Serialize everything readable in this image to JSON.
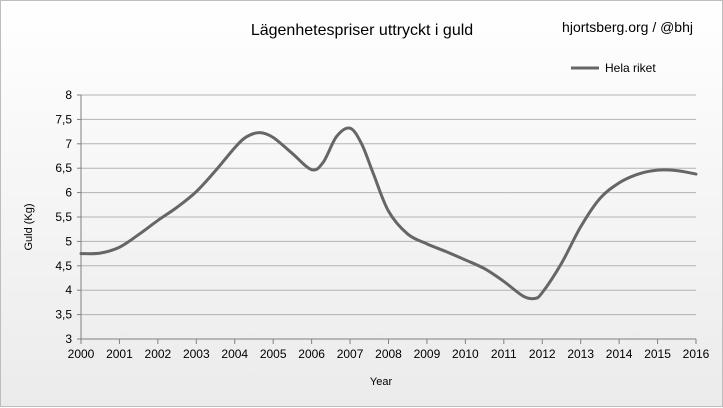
{
  "chart_data": {
    "type": "line",
    "title": "Lägenhetespriser uttryckt i guld",
    "credit": "hjortsberg.org / @bhj",
    "xlabel": "Year",
    "ylabel": "Guld (Kg)",
    "xlim": [
      2000,
      2016
    ],
    "ylim": [
      3,
      8
    ],
    "x_ticks": [
      "2000",
      "2001",
      "2002",
      "2003",
      "2004",
      "2005",
      "2006",
      "2007",
      "2008",
      "2009",
      "2010",
      "2011",
      "2012",
      "2013",
      "2014",
      "2015",
      "2016"
    ],
    "y_ticks": [
      "3",
      "3,5",
      "4",
      "4,5",
      "5",
      "5,5",
      "6",
      "6,5",
      "7",
      "7,5",
      "8"
    ],
    "grid": "horizontal",
    "legend_position": "top-right",
    "series": [
      {
        "name": "Hela riket",
        "color": "#666666",
        "x": [
          2000,
          2000.5,
          2001,
          2001.5,
          2002,
          2002.5,
          2003,
          2003.5,
          2004,
          2004.3,
          2004.65,
          2005,
          2005.5,
          2006,
          2006.3,
          2006.65,
          2007,
          2007.3,
          2007.6,
          2008,
          2008.5,
          2009,
          2009.5,
          2010,
          2010.5,
          2011,
          2011.5,
          2011.8,
          2012,
          2012.5,
          2013,
          2013.5,
          2014,
          2014.5,
          2015,
          2015.5,
          2016
        ],
        "y": [
          4.75,
          4.76,
          4.88,
          5.14,
          5.43,
          5.7,
          6.02,
          6.45,
          6.92,
          7.14,
          7.23,
          7.13,
          6.8,
          6.47,
          6.62,
          7.15,
          7.32,
          7.0,
          6.4,
          5.62,
          5.15,
          4.95,
          4.79,
          4.62,
          4.44,
          4.18,
          3.88,
          3.83,
          3.95,
          4.55,
          5.3,
          5.88,
          6.2,
          6.38,
          6.46,
          6.45,
          6.38
        ]
      }
    ]
  }
}
